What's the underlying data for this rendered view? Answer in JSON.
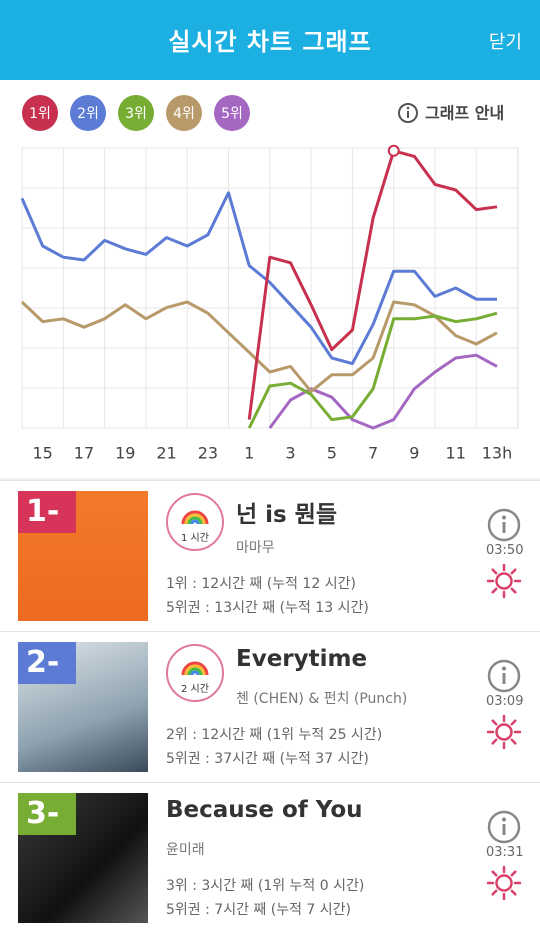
{
  "header": {
    "title": "실시간 차트 그래프",
    "close": "닫기"
  },
  "guide": "그래프 안내",
  "chart_data": {
    "type": "line",
    "categories": [
      null,
      "15",
      null,
      "17",
      null,
      "19",
      null,
      "21",
      null,
      "23",
      null,
      "1",
      null,
      "3",
      null,
      "5",
      null,
      "7",
      null,
      "9",
      null,
      "11",
      null,
      "13h"
    ],
    "ylim": [
      0,
      100
    ],
    "grid": true,
    "series": [
      {
        "name": "1위",
        "color": "#c8304f",
        "values": [
          null,
          null,
          null,
          null,
          null,
          null,
          null,
          null,
          null,
          null,
          null,
          3,
          61,
          59,
          44,
          28,
          35,
          75,
          99,
          97,
          87,
          85,
          78,
          79
        ]
      },
      {
        "name": "2위",
        "color": "#5b7bd5",
        "values": [
          82,
          65,
          61,
          60,
          67,
          64,
          62,
          68,
          65,
          69,
          84,
          58,
          52,
          44,
          36,
          25,
          23,
          37,
          56,
          56,
          47,
          50,
          46,
          46
        ]
      },
      {
        "name": "3위",
        "color": "#77ad33",
        "values": [
          null,
          null,
          null,
          null,
          null,
          null,
          null,
          null,
          null,
          null,
          null,
          0,
          15,
          16,
          12,
          3,
          4,
          14,
          39,
          39,
          40,
          38,
          39,
          41
        ]
      },
      {
        "name": "4위",
        "color": "#b89a6a",
        "values": [
          45,
          38,
          39,
          36,
          39,
          44,
          39,
          43,
          45,
          41,
          34,
          27,
          20,
          22,
          13,
          19,
          19,
          25,
          45,
          44,
          40,
          33,
          30,
          34
        ]
      },
      {
        "name": "5위",
        "color": "#a467c2",
        "values": [
          null,
          null,
          null,
          null,
          null,
          null,
          null,
          null,
          null,
          null,
          null,
          null,
          0,
          10,
          14,
          11,
          3,
          0,
          3,
          14,
          20,
          25,
          26,
          22
        ]
      }
    ]
  },
  "songs": [
    {
      "rank": "1-",
      "title": "넌 is 뭔들",
      "artist": "마마무",
      "badge": "1 시간",
      "stats": [
        "1위 : 12시간 째 (누적 12 시간)",
        "5위권 : 13시간 째 (누적 13 시간)"
      ],
      "time": "03:50"
    },
    {
      "rank": "2-",
      "title": "Everytime",
      "artist": "첸 (CHEN) & 펀치 (Punch)",
      "badge": "2 시간",
      "stats": [
        "2위 : 12시간 째 (1위 누적 25 시간)",
        "5위권 : 37시간 째 (누적 37 시간)"
      ],
      "time": "03:09"
    },
    {
      "rank": "3-",
      "title": "Because of You",
      "artist": "윤미래",
      "stats": [
        "3위 : 3시간 째 (1위 누적 0 시간)",
        "5위권 : 7시간 째 (누적 7 시간)"
      ],
      "time": "03:31"
    }
  ]
}
